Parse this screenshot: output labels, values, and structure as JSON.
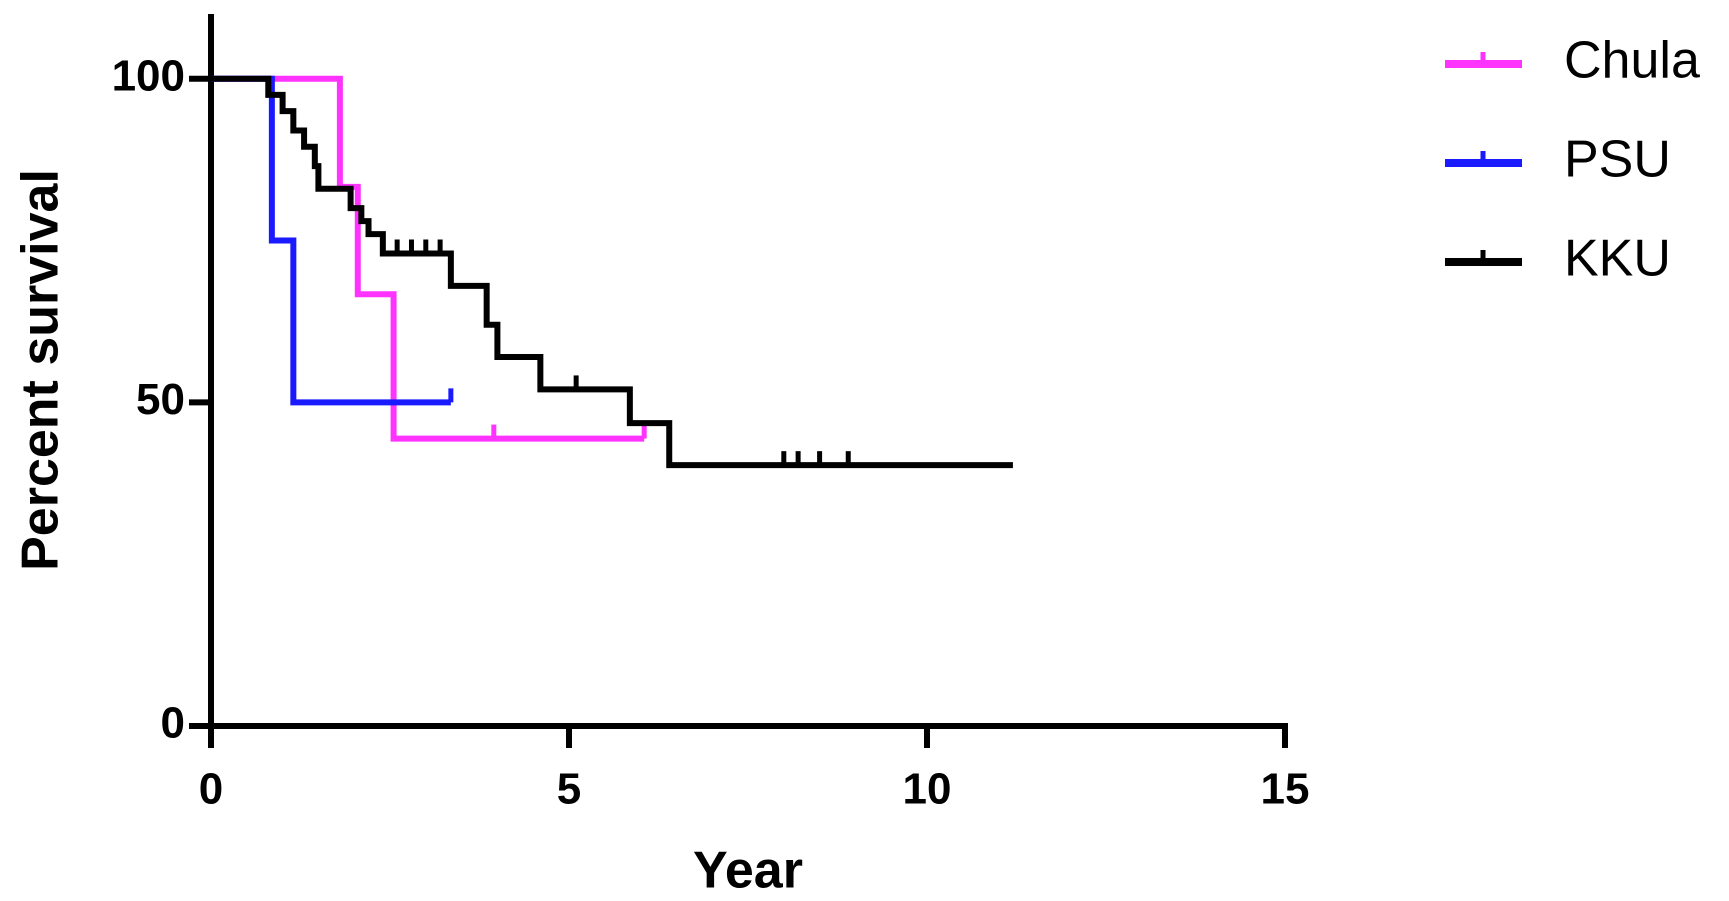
{
  "chart_data": {
    "type": "survival",
    "xlabel": "Year",
    "ylabel": "Percent survival",
    "xlim": [
      0,
      15
    ],
    "ylim": [
      0,
      110
    ],
    "xticks": [
      0,
      5,
      10,
      15
    ],
    "yticks": [
      0,
      50,
      100
    ],
    "legend": "right",
    "series": [
      {
        "name": "Chula",
        "color": "#ff33ff",
        "x": [
          0,
          1.8,
          2.05,
          2.55,
          6.05
        ],
        "values": [
          100,
          83.3,
          66.7,
          44.4,
          44.4
        ],
        "censored_x": [
          3.95,
          6.05
        ],
        "censored_values": [
          44.4,
          44.4
        ]
      },
      {
        "name": "PSU",
        "color": "#1a1aff",
        "x": [
          0,
          0.85,
          1.15,
          3.35
        ],
        "values": [
          100,
          75,
          50,
          50
        ],
        "censored_x": [
          3.35
        ],
        "censored_values": [
          50
        ]
      },
      {
        "name": "KKU",
        "color": "#000000",
        "x": [
          0,
          0.8,
          1.0,
          1.15,
          1.3,
          1.45,
          1.5,
          1.95,
          2.1,
          2.2,
          2.4,
          3.35,
          3.85,
          4.0,
          4.6,
          5.85,
          6.4,
          11.2
        ],
        "values": [
          100,
          97.5,
          95,
          92,
          89.5,
          86.5,
          83,
          80,
          78,
          76,
          73,
          68,
          62,
          57,
          52,
          46.8,
          40.3,
          40.3
        ],
        "censored_x": [
          2.6,
          2.8,
          3.0,
          3.2,
          5.1,
          8.0,
          8.2,
          8.5,
          8.9
        ],
        "censored_values": [
          73,
          73,
          73,
          73,
          52,
          40.3,
          40.3,
          40.3,
          40.3
        ]
      }
    ]
  }
}
